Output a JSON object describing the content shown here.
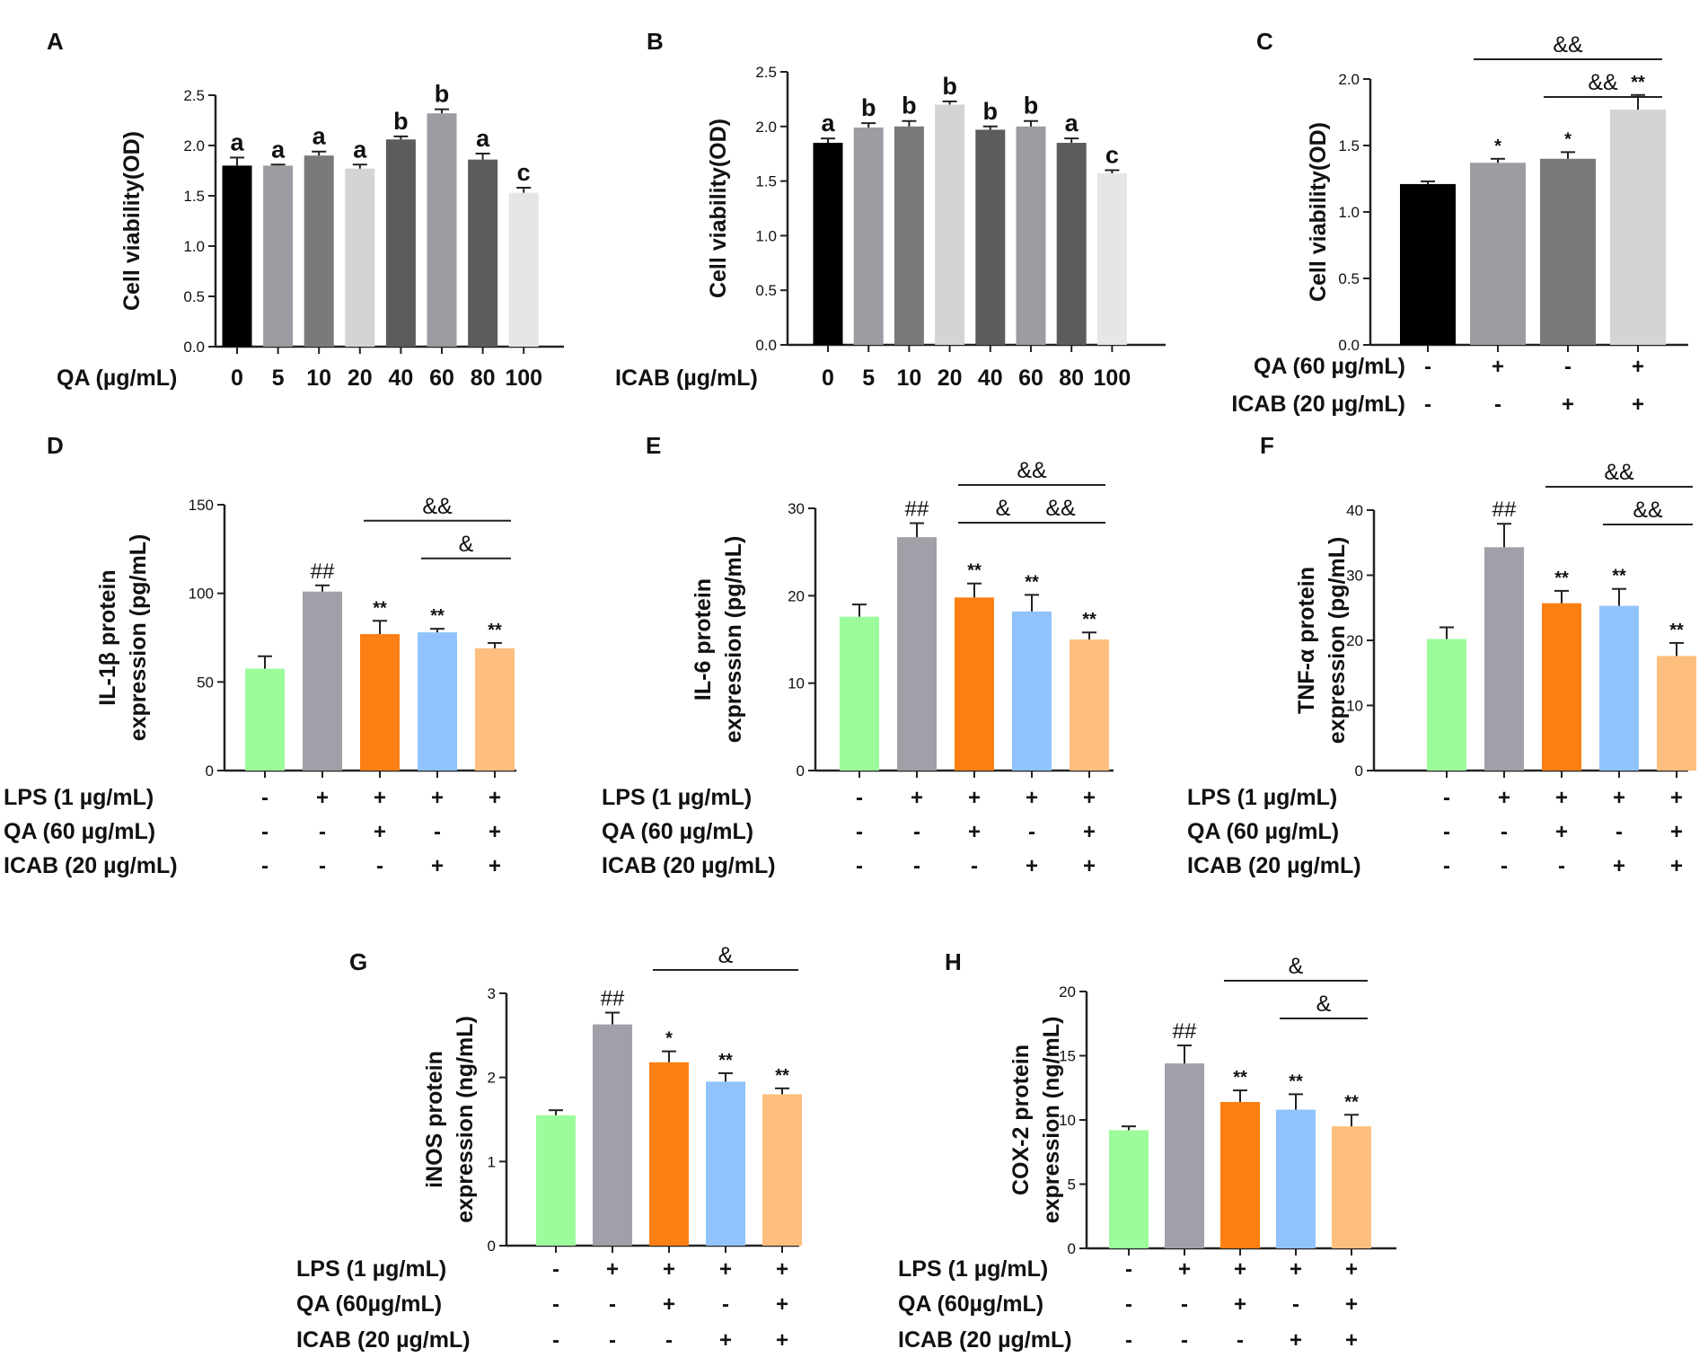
{
  "colors": {
    "black": "#000000",
    "mid_gray": "#9c9ca3",
    "dark_gray": "#7a7a7a",
    "light_gray": "#d4d4d6",
    "darker_gray": "#5c5c5c",
    "very_light_gray": "#e6e6e6",
    "green": "#9cfc9c",
    "gray": "#a0a0a8",
    "orange": "#fb7f12",
    "blue": "#90c3fb",
    "peach": "#fdbe7e"
  },
  "chart_data": [
    {
      "panel": "A",
      "type": "bar",
      "ylabel": "Cell viability(OD)",
      "ylim": [
        0,
        2.5
      ],
      "yticks": [
        "0.0",
        "0.5",
        "1.0",
        "1.5",
        "2.0",
        "2.5"
      ],
      "xlabel": "QA (µg/mL)",
      "categories": [
        "0",
        "5",
        "10",
        "20",
        "40",
        "60",
        "80",
        "100"
      ],
      "values": [
        1.8,
        1.8,
        1.9,
        1.77,
        2.06,
        2.32,
        1.86,
        1.53
      ],
      "errors": [
        0.08,
        0.01,
        0.04,
        0.04,
        0.03,
        0.04,
        0.06,
        0.05
      ],
      "annotations": [
        "a",
        "a",
        "a",
        "a",
        "b",
        "b",
        "a",
        "c"
      ],
      "bar_colors": [
        "black",
        "mid_gray",
        "dark_gray",
        "light_gray",
        "darker_gray",
        "mid_gray",
        "darker_gray",
        "very_light_gray"
      ]
    },
    {
      "panel": "B",
      "type": "bar",
      "ylabel": "Cell viability(OD)",
      "ylim": [
        0,
        2.5
      ],
      "yticks": [
        "0.0",
        "0.5",
        "1.0",
        "1.5",
        "2.0",
        "2.5"
      ],
      "xlabel": "ICAB (µg/mL)",
      "categories": [
        "0",
        "5",
        "10",
        "20",
        "40",
        "60",
        "80",
        "100"
      ],
      "values": [
        1.85,
        1.99,
        2.0,
        2.2,
        1.97,
        2.0,
        1.85,
        1.57
      ],
      "errors": [
        0.04,
        0.04,
        0.05,
        0.03,
        0.03,
        0.05,
        0.04,
        0.03
      ],
      "annotations": [
        "a",
        "b",
        "b",
        "b",
        "b",
        "b",
        "a",
        "c"
      ],
      "bar_colors": [
        "black",
        "mid_gray",
        "dark_gray",
        "light_gray",
        "darker_gray",
        "mid_gray",
        "darker_gray",
        "very_light_gray"
      ]
    },
    {
      "panel": "C",
      "type": "bar",
      "ylabel": "Cell viability(OD)",
      "ylim": [
        0,
        2.0
      ],
      "yticks": [
        "0.0",
        "0.5",
        "1.0",
        "1.5",
        "2.0"
      ],
      "rows": [
        {
          "label": "QA  (60 µg/mL)",
          "signs": [
            "-",
            "+",
            "-",
            "+"
          ]
        },
        {
          "label": "ICAB (20 µg/mL)",
          "signs": [
            "-",
            "-",
            "+",
            "+"
          ]
        }
      ],
      "values": [
        1.21,
        1.37,
        1.4,
        1.77
      ],
      "errors": [
        0.02,
        0.03,
        0.05,
        0.11
      ],
      "annotations": [
        "",
        "*",
        "*",
        "**"
      ],
      "brackets": [
        {
          "from": 1,
          "to": 3,
          "label": "&&",
          "level": 0
        },
        {
          "from": 2,
          "to": 3,
          "label": "&&",
          "level": 1
        }
      ],
      "bar_colors": [
        "black",
        "mid_gray",
        "dark_gray",
        "light_gray"
      ]
    },
    {
      "panel": "D",
      "type": "bar",
      "ylabel": [
        "IL-1β protein",
        "expression (pg/mL)"
      ],
      "ylim": [
        0,
        150
      ],
      "yticks": [
        "0",
        "50",
        "100",
        "150"
      ],
      "rows": [
        {
          "label": "LPS (1 µg/mL)",
          "signs": [
            "-",
            "+",
            "+",
            "+",
            "+"
          ]
        },
        {
          "label": "QA  (60 µg/mL)",
          "signs": [
            "-",
            "-",
            "+",
            "-",
            "+"
          ]
        },
        {
          "label": "ICAB (20 µg/mL)",
          "signs": [
            "-",
            "-",
            "-",
            "+",
            "+"
          ]
        }
      ],
      "values": [
        57.5,
        101,
        77,
        78,
        69
      ],
      "errors": [
        7,
        3.5,
        7.5,
        2,
        3
      ],
      "annotations": [
        "",
        "##",
        "**",
        "**",
        "**"
      ],
      "brackets": [
        {
          "from": 2,
          "to": 4,
          "label": "&&",
          "level": 0
        },
        {
          "from": 3,
          "to": 4,
          "label": "&",
          "level": 1
        }
      ],
      "bar_colors": [
        "green",
        "gray",
        "orange",
        "blue",
        "peach"
      ]
    },
    {
      "panel": "E",
      "type": "bar",
      "ylabel": [
        "IL-6 protein",
        "expression (pg/mL)"
      ],
      "ylim": [
        0,
        30
      ],
      "yticks": [
        "0",
        "10",
        "20",
        "30"
      ],
      "rows": [
        {
          "label": "LPS (1 µg/mL)",
          "signs": [
            "-",
            "+",
            "+",
            "+",
            "+"
          ]
        },
        {
          "label": "QA (60 µg/mL)",
          "signs": [
            "-",
            "-",
            "+",
            "-",
            "+"
          ]
        },
        {
          "label": "ICAB (20 µg/mL)",
          "signs": [
            "-",
            "-",
            "-",
            "+",
            "+"
          ]
        }
      ],
      "values": [
        17.6,
        26.7,
        19.8,
        18.2,
        15.0
      ],
      "errors": [
        1.4,
        1.6,
        1.6,
        1.9,
        0.8
      ],
      "annotations": [
        "",
        "##",
        "**",
        "**",
        "**"
      ],
      "brackets": [
        {
          "from": 2,
          "to": 4,
          "label": "&&",
          "level": 0
        },
        {
          "from": 2,
          "to": 3,
          "label": "&",
          "level": 1
        },
        {
          "from": 3,
          "to": 4,
          "label": "&&",
          "level": 1
        }
      ],
      "bar_colors": [
        "green",
        "gray",
        "orange",
        "blue",
        "peach"
      ]
    },
    {
      "panel": "F",
      "type": "bar",
      "ylabel": [
        "TNF-α protein",
        "expression (pg/mL)"
      ],
      "ylim": [
        0,
        40
      ],
      "yticks": [
        "0",
        "10",
        "20",
        "30",
        "40"
      ],
      "rows": [
        {
          "label": "LPS (1 µg/mL)",
          "signs": [
            "-",
            "+",
            "+",
            "+",
            "+"
          ]
        },
        {
          "label": "QA (60 µg/mL)",
          "signs": [
            "-",
            "-",
            "+",
            "-",
            "+"
          ]
        },
        {
          "label": "ICAB (20 µg/mL)",
          "signs": [
            "-",
            "-",
            "-",
            "+",
            "+"
          ]
        }
      ],
      "values": [
        20.2,
        34.3,
        25.7,
        25.3,
        17.6
      ],
      "errors": [
        1.8,
        3.6,
        1.9,
        2.6,
        2.0
      ],
      "annotations": [
        "",
        "##",
        "**",
        "**",
        "**"
      ],
      "brackets": [
        {
          "from": 2,
          "to": 4,
          "label": "&&",
          "level": 0
        },
        {
          "from": 3,
          "to": 4,
          "label": "&&",
          "level": 1
        }
      ],
      "bar_colors": [
        "green",
        "gray",
        "orange",
        "blue",
        "peach"
      ]
    },
    {
      "panel": "G",
      "type": "bar",
      "ylabel": [
        "iNOS protein",
        "expression (ng/mL)"
      ],
      "ylim": [
        0,
        3
      ],
      "yticks": [
        "0",
        "1",
        "2",
        "3"
      ],
      "rows": [
        {
          "label": "LPS (1 µg/mL)",
          "signs": [
            "-",
            "+",
            "+",
            "+",
            "+"
          ]
        },
        {
          "label": "QA (60µg/mL)",
          "signs": [
            "-",
            "-",
            "+",
            "-",
            "+"
          ]
        },
        {
          "label": "ICAB (20 µg/mL)",
          "signs": [
            "-",
            "-",
            "-",
            "+",
            "+"
          ]
        }
      ],
      "values": [
        1.55,
        2.63,
        2.18,
        1.95,
        1.8
      ],
      "errors": [
        0.06,
        0.14,
        0.13,
        0.1,
        0.07
      ],
      "annotations": [
        "",
        "##",
        "*",
        "**",
        "**"
      ],
      "brackets": [
        {
          "from": 2,
          "to": 4,
          "label": "&",
          "level": 0
        }
      ],
      "bar_colors": [
        "green",
        "gray",
        "orange",
        "blue",
        "peach"
      ]
    },
    {
      "panel": "H",
      "type": "bar",
      "ylabel": [
        "COX-2 protein",
        "expression (ng/mL)"
      ],
      "ylim": [
        0,
        20
      ],
      "yticks": [
        "0",
        "5",
        "10",
        "15",
        "20"
      ],
      "rows": [
        {
          "label": "LPS (1 µg/mL)",
          "signs": [
            "-",
            "+",
            "+",
            "+",
            "+"
          ]
        },
        {
          "label": "QA (60µg/mL)",
          "signs": [
            "-",
            "-",
            "+",
            "-",
            "+"
          ]
        },
        {
          "label": "ICAB (20 µg/mL)",
          "signs": [
            "-",
            "-",
            "-",
            "+",
            "+"
          ]
        }
      ],
      "values": [
        9.2,
        14.4,
        11.4,
        10.8,
        9.5
      ],
      "errors": [
        0.3,
        1.4,
        0.9,
        1.2,
        0.9
      ],
      "annotations": [
        "",
        "##",
        "**",
        "**",
        "**"
      ],
      "brackets": [
        {
          "from": 2,
          "to": 4,
          "label": "&",
          "level": 0
        },
        {
          "from": 3,
          "to": 4,
          "label": "&",
          "level": 1
        }
      ],
      "bar_colors": [
        "green",
        "gray",
        "orange",
        "blue",
        "peach"
      ]
    }
  ]
}
